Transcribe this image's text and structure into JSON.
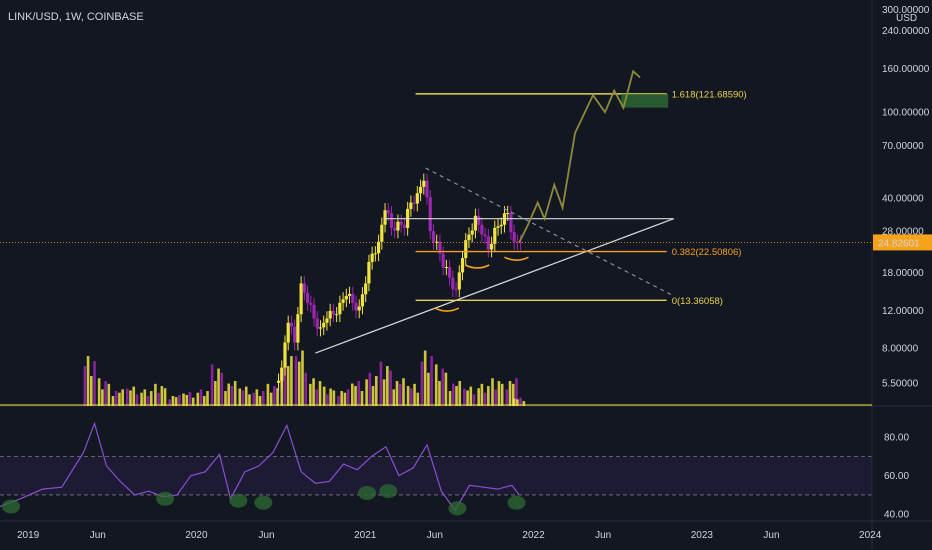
{
  "header": {
    "symbol_line": "LINK/USD, 1W, COINBASE",
    "currency": "USD"
  },
  "colors": {
    "background": "#131722",
    "bull": "#f0e442",
    "bear": "#9c27b0",
    "fib": "#e8d44d",
    "level_orange": "#f7a21b",
    "projection": "#8d8a3b",
    "rsi_line": "#8a4fd1",
    "rsi_band": "#1c1b33",
    "green_zone": "#2e6b33"
  },
  "chart_data": [
    {
      "type": "line",
      "role": "price",
      "scale": "log",
      "ylim": [
        4.5,
        305
      ],
      "y_ticks": [
        "300.00000",
        "240.00000",
        "160.00000",
        "100.00000",
        "70.00000",
        "40.00000",
        "28.00000",
        "18.00000",
        "12.00000",
        "8.00000",
        "5.50000"
      ],
      "y_tick_values": [
        300,
        240,
        160,
        100,
        70,
        40,
        28,
        18,
        12,
        8,
        5.5
      ],
      "x_ticks": [
        "2019",
        "Jun",
        "2020",
        "Jun",
        "2021",
        "Jun",
        "2022",
        "Jun",
        "2023",
        "Jun",
        "2024"
      ],
      "x_tick_dates": [
        "2019-01-01",
        "2019-06-01",
        "2020-01-01",
        "2020-06-01",
        "2021-01-01",
        "2021-06-01",
        "2022-01-01",
        "2022-06-01",
        "2023-01-01",
        "2023-06-01",
        "2024-01-01"
      ],
      "xlim": [
        "2018-11-01",
        "2024-01-05"
      ],
      "current_price": {
        "label": "24.82601",
        "value": 24.82601
      },
      "levels": [
        {
          "label": "1.618(121.68590)",
          "value": 121.6859,
          "from": "2021-05-01",
          "to": "2022-11-01"
        },
        {
          "label": "0.382(22.50806)",
          "value": 22.50806,
          "from": "2021-05-01",
          "to": "2022-11-01"
        },
        {
          "label": "0(13.36058)",
          "value": 13.36058,
          "from": "2021-05-01",
          "to": "2022-11-01"
        }
      ],
      "candles": [
        {
          "date": "2020-07-01",
          "close": 6.5
        },
        {
          "date": "2020-07-15",
          "close": 10.5
        },
        {
          "date": "2020-07-29",
          "close": 8.5
        },
        {
          "date": "2020-08-12",
          "close": 16.0
        },
        {
          "date": "2020-08-26",
          "close": 13.0
        },
        {
          "date": "2020-09-09",
          "close": 11.0
        },
        {
          "date": "2020-09-23",
          "close": 10.0
        },
        {
          "date": "2020-10-07",
          "close": 11.0
        },
        {
          "date": "2020-10-21",
          "close": 11.5
        },
        {
          "date": "2020-11-04",
          "close": 13.0
        },
        {
          "date": "2020-11-18",
          "close": 14.0
        },
        {
          "date": "2020-12-02",
          "close": 13.0
        },
        {
          "date": "2020-12-16",
          "close": 12.5
        },
        {
          "date": "2020-12-30",
          "close": 16.0
        },
        {
          "date": "2021-01-13",
          "close": 22.0
        },
        {
          "date": "2021-01-27",
          "close": 25.0
        },
        {
          "date": "2021-02-10",
          "close": 35.0
        },
        {
          "date": "2021-02-24",
          "close": 29.0
        },
        {
          "date": "2021-03-10",
          "close": 31.0
        },
        {
          "date": "2021-03-24",
          "close": 29.0
        },
        {
          "date": "2021-04-07",
          "close": 38.0
        },
        {
          "date": "2021-04-21",
          "close": 42.0
        },
        {
          "date": "2021-05-05",
          "close": 48.0
        },
        {
          "date": "2021-05-19",
          "close": 28.0
        },
        {
          "date": "2021-06-02",
          "close": 25.0
        },
        {
          "date": "2021-06-16",
          "close": 19.0
        },
        {
          "date": "2021-06-30",
          "close": 17.0
        },
        {
          "date": "2021-07-14",
          "close": 15.0
        },
        {
          "date": "2021-07-28",
          "close": 21.0
        },
        {
          "date": "2021-08-11",
          "close": 27.0
        },
        {
          "date": "2021-08-25",
          "close": 33.0
        },
        {
          "date": "2021-09-08",
          "close": 27.0
        },
        {
          "date": "2021-09-22",
          "close": 23.0
        },
        {
          "date": "2021-10-06",
          "close": 29.0
        },
        {
          "date": "2021-10-20",
          "close": 30.0
        },
        {
          "date": "2021-11-03",
          "close": 34.0
        },
        {
          "date": "2021-11-17",
          "close": 25.0
        },
        {
          "date": "2021-12-01",
          "close": 24.83
        }
      ],
      "projection": [
        {
          "date": "2021-12-01",
          "value": 24.8
        },
        {
          "date": "2021-12-20",
          "value": 30
        },
        {
          "date": "2022-01-10",
          "value": 38
        },
        {
          "date": "2022-01-25",
          "value": 32
        },
        {
          "date": "2022-02-15",
          "value": 46
        },
        {
          "date": "2022-03-05",
          "value": 36
        },
        {
          "date": "2022-04-01",
          "value": 80
        },
        {
          "date": "2022-05-10",
          "value": 120
        },
        {
          "date": "2022-06-05",
          "value": 100
        },
        {
          "date": "2022-06-25",
          "value": 126
        },
        {
          "date": "2022-07-15",
          "value": 105
        },
        {
          "date": "2022-08-05",
          "value": 155
        },
        {
          "date": "2022-08-20",
          "value": 145
        }
      ],
      "trendlines": [
        {
          "style": "solid",
          "color": "#d8d8d8",
          "points": [
            {
              "date": "2020-09-15",
              "value": 7.6
            },
            {
              "date": "2022-11-01",
              "value": 32
            }
          ]
        },
        {
          "style": "solid",
          "color": "#d8d8d8",
          "points": [
            {
              "date": "2021-02-10",
              "value": 32
            },
            {
              "date": "2022-11-01",
              "value": 32
            }
          ]
        },
        {
          "style": "dashed",
          "color": "#8a8d95",
          "points": [
            {
              "date": "2021-05-12",
              "value": 55
            },
            {
              "date": "2022-11-01",
              "value": 14
            }
          ]
        }
      ]
    },
    {
      "type": "bar",
      "role": "volume",
      "dates": [
        "2019-05-15",
        "2019-06-15",
        "2019-07-15",
        "2019-08-15",
        "2019-09-15",
        "2019-10-15",
        "2019-11-15",
        "2019-12-15",
        "2020-01-15",
        "2020-02-15",
        "2020-03-15",
        "2020-04-15",
        "2020-05-15",
        "2020-06-15",
        "2020-07-15",
        "2020-08-15",
        "2020-09-15",
        "2020-10-15",
        "2020-11-15",
        "2020-12-15",
        "2021-01-15",
        "2021-02-15",
        "2021-03-15",
        "2021-04-15",
        "2021-05-15",
        "2021-06-15",
        "2021-07-15",
        "2021-08-15",
        "2021-09-15",
        "2021-10-15",
        "2021-11-15",
        "2021-12-01"
      ],
      "values": [
        0.9,
        0.5,
        0.3,
        0.35,
        0.3,
        0.4,
        0.2,
        0.25,
        0.3,
        0.75,
        0.45,
        0.35,
        0.3,
        0.4,
        0.9,
        1.0,
        0.5,
        0.35,
        0.3,
        0.45,
        0.6,
        0.8,
        0.5,
        0.4,
        1.0,
        0.75,
        0.45,
        0.35,
        0.4,
        0.5,
        0.5,
        0.15
      ],
      "ylim": [
        0,
        1.1
      ]
    },
    {
      "type": "line",
      "role": "rsi",
      "y_ticks": [
        "80.00",
        "60.00",
        "40.00"
      ],
      "y_tick_values": [
        80,
        60,
        40
      ],
      "ylim": [
        37,
        93
      ],
      "band": [
        50,
        70
      ],
      "x": [
        "2018-11-01",
        "2018-12-15",
        "2019-02-01",
        "2019-03-15",
        "2019-05-01",
        "2019-05-25",
        "2019-06-20",
        "2019-07-20",
        "2019-08-20",
        "2019-09-20",
        "2019-10-20",
        "2019-11-20",
        "2019-12-20",
        "2020-01-20",
        "2020-02-20",
        "2020-03-15",
        "2020-04-15",
        "2020-05-15",
        "2020-06-15",
        "2020-07-15",
        "2020-08-15",
        "2020-09-15",
        "2020-10-15",
        "2020-11-15",
        "2020-12-15",
        "2021-01-15",
        "2021-02-15",
        "2021-03-15",
        "2021-04-15",
        "2021-05-15",
        "2021-06-15",
        "2021-07-15",
        "2021-08-15",
        "2021-09-15",
        "2021-10-15",
        "2021-11-15",
        "2021-12-01"
      ],
      "values": [
        44,
        48,
        53,
        54,
        72,
        87,
        65,
        57,
        50,
        52,
        49,
        50,
        60,
        62,
        71,
        48,
        62,
        65,
        72,
        86,
        62,
        56,
        57,
        66,
        63,
        70,
        75,
        60,
        64,
        76,
        52,
        42,
        55,
        54,
        53,
        55,
        50
      ]
    }
  ]
}
